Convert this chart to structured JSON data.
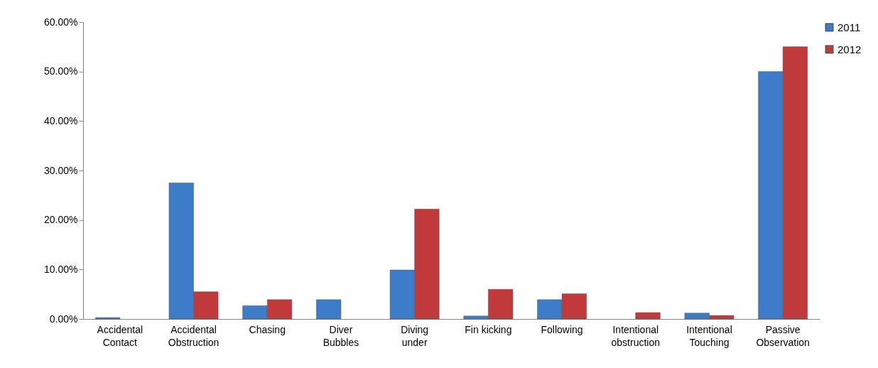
{
  "chart_data": {
    "type": "bar",
    "categories": [
      "Accidental Contact",
      "Accidental Obstruction",
      "Chasing",
      "Diver Bubbles",
      "Diving under",
      "Fin kicking",
      "Following",
      "Intentional obstruction",
      "Intentional Touching",
      "Passive Observation"
    ],
    "series": [
      {
        "name": "2011",
        "color": "#3d7cc9",
        "values": [
          0.3,
          27.5,
          2.7,
          3.9,
          9.9,
          0.6,
          3.9,
          null,
          1.2,
          50.0
        ]
      },
      {
        "name": "2012",
        "color": "#c0393b",
        "values": [
          null,
          5.5,
          3.9,
          null,
          22.2,
          6.0,
          5.1,
          1.3,
          0.7,
          55.0
        ]
      }
    ],
    "ylim": [
      0,
      60
    ],
    "yticks": [
      {
        "value": 0,
        "label": "0.00%"
      },
      {
        "value": 10,
        "label": "10.00%"
      },
      {
        "value": 20,
        "label": "20.00%"
      },
      {
        "value": 30,
        "label": "30.00%"
      },
      {
        "value": 40,
        "label": "40.00%"
      },
      {
        "value": 50,
        "label": "50.00%"
      },
      {
        "value": 60,
        "label": "60.00%"
      }
    ],
    "legend": "right",
    "grid": false
  }
}
